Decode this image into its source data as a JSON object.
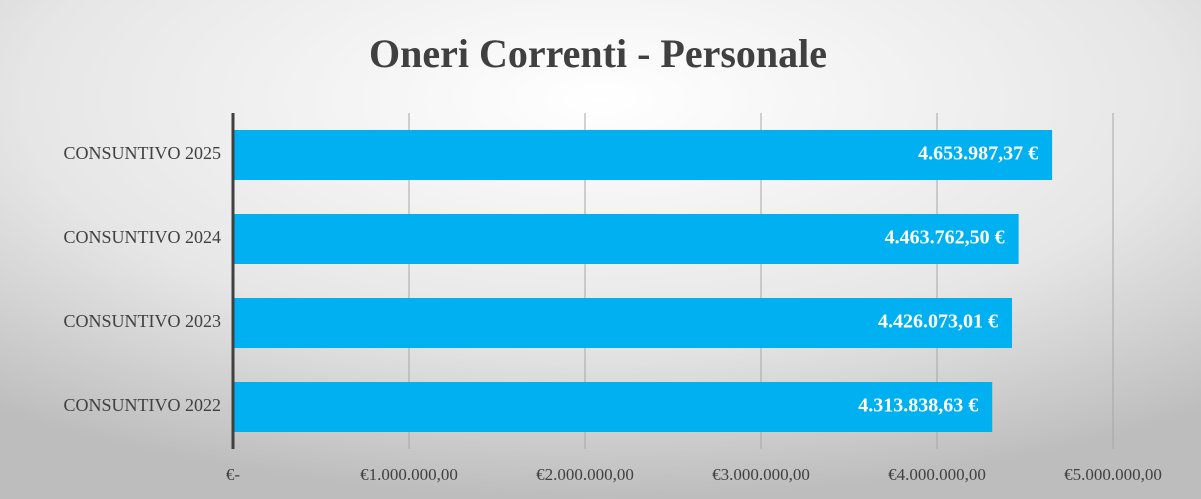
{
  "chart_data": {
    "type": "bar",
    "orientation": "horizontal",
    "title": "Oneri Correnti - Personale",
    "categories": [
      "CONSUNTIVO 2025",
      "CONSUNTIVO 2024",
      "CONSUNTIVO 2023",
      "CONSUNTIVO 2022"
    ],
    "values": [
      4653987.37,
      4463762.5,
      4426073.01,
      4313838.63
    ],
    "value_labels": [
      "4.653.987,37 €",
      "4.463.762,50 €",
      "4.426.073,01 €",
      "4.313.838,63 €"
    ],
    "color": "#00b0f0",
    "xlim": [
      0,
      5000000
    ],
    "xticks": [
      {
        "value": 0,
        "label": "€-"
      },
      {
        "value": 1000000,
        "label": "€1.000.000,00"
      },
      {
        "value": 2000000,
        "label": "€2.000.000,00"
      },
      {
        "value": 3000000,
        "label": "€3.000.000,00"
      },
      {
        "value": 4000000,
        "label": "€4.000.000,00"
      },
      {
        "value": 5000000,
        "label": "€5.000.000,00"
      }
    ],
    "grid": true
  }
}
